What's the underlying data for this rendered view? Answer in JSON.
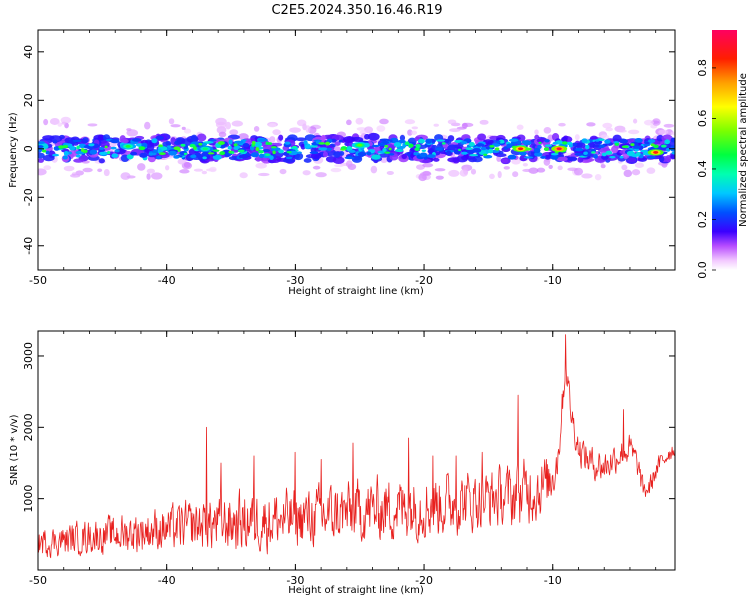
{
  "title": "C2E5.2024.350.16.46.R19",
  "chart_data": [
    {
      "type": "heatmap",
      "xlabel": "Height of straight line (km)",
      "ylabel": "Frequency (Hz)",
      "xlim": [
        -50,
        -0.5
      ],
      "ylim": [
        -50,
        49
      ],
      "xticks": [
        "-50",
        "-40",
        "-30",
        "-20",
        "-10"
      ],
      "yticks": [
        "-40",
        "-20",
        "0",
        "20",
        "40"
      ],
      "colorbar": {
        "label": "Normalized spectral amplitude",
        "range": [
          0,
          0.95
        ],
        "ticks": [
          "0.0",
          "0.2",
          "0.4",
          "0.6",
          "0.8"
        ]
      },
      "band": {
        "center_hz": 0,
        "half_width_hz": 5
      },
      "hotspots": [
        {
          "x": -12.5,
          "y": 0,
          "value": 0.9
        },
        {
          "x": -9.5,
          "y": 0,
          "value": 0.95
        },
        {
          "x": -2,
          "y": -1.5,
          "value": 0.9
        },
        {
          "x": -25,
          "y": 1.5,
          "value": 0.55
        },
        {
          "x": -43,
          "y": 1,
          "value": 0.5
        },
        {
          "x": -37,
          "y": 0,
          "value": 0.45
        }
      ]
    },
    {
      "type": "line",
      "xlabel": "Height of straight line (km)",
      "ylabel": "SNR (10 * v/v)",
      "xlim": [
        -50,
        -0.5
      ],
      "ylim": [
        0,
        3350
      ],
      "xticks": [
        "-50",
        "-40",
        "-30",
        "-20",
        "-10"
      ],
      "yticks": [
        "1000",
        "2000",
        "3000"
      ],
      "series": [
        {
          "color": "#e8201e",
          "x": [
            -50,
            -48,
            -46,
            -44,
            -42,
            -40,
            -38,
            -36,
            -34,
            -32,
            -30,
            -28,
            -26,
            -24,
            -22,
            -20,
            -18,
            -16,
            -14,
            -12.8,
            -12,
            -11,
            -10.2,
            -9.6,
            -9.3,
            -9,
            -8.6,
            -8,
            -7,
            -6,
            -5,
            -4,
            -3.5,
            -3.2,
            -3,
            -2.5,
            -2,
            -1,
            -0.5
          ],
          "baseline": [
            380,
            420,
            470,
            500,
            540,
            580,
            620,
            650,
            680,
            700,
            720,
            760,
            800,
            840,
            880,
            900,
            940,
            980,
            1020,
            1050,
            1100,
            1150,
            1250,
            1600,
            2300,
            2900,
            2200,
            1700,
            1500,
            1450,
            1600,
            1700,
            1500,
            1300,
            1100,
            1150,
            1400,
            1650,
            1700
          ],
          "amplitude": [
            260,
            280,
            320,
            350,
            380,
            420,
            460,
            520,
            560,
            560,
            540,
            560,
            580,
            600,
            600,
            600,
            600,
            560,
            540,
            620,
            620,
            560,
            520,
            420,
            320,
            300,
            280,
            300,
            300,
            300,
            280,
            280,
            260,
            240,
            200,
            200,
            200,
            180,
            160
          ],
          "peaks": [
            {
              "x": -36.9,
              "y": 2000
            },
            {
              "x": -35.8,
              "y": 1500
            },
            {
              "x": -33.2,
              "y": 1600
            },
            {
              "x": -30,
              "y": 1650
            },
            {
              "x": -28,
              "y": 1550
            },
            {
              "x": -25.5,
              "y": 1780
            },
            {
              "x": -21.2,
              "y": 1850
            },
            {
              "x": -19.3,
              "y": 1600
            },
            {
              "x": -17.5,
              "y": 1600
            },
            {
              "x": -15.5,
              "y": 1650
            },
            {
              "x": -12.7,
              "y": 2450
            },
            {
              "x": -9,
              "y": 3300
            },
            {
              "x": -4.5,
              "y": 2250
            }
          ]
        }
      ]
    }
  ]
}
